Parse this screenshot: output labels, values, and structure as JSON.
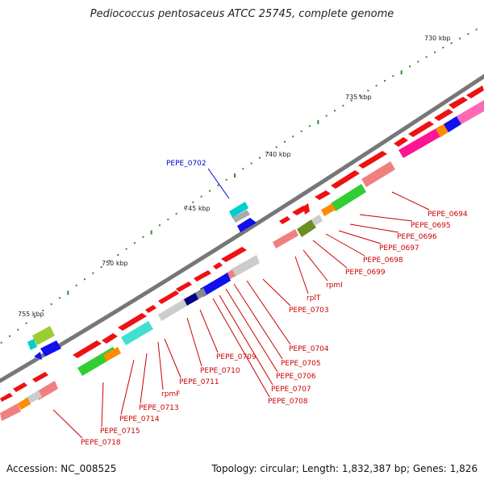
{
  "title": "Pediococcus pentosaceus ATCC 25745, complete genome",
  "footer": {
    "accession": "Accession: NC_008525",
    "summary": "Topology: circular; Length: 1,832,387 bp; Genes: 1,826"
  },
  "ticks": [
    "730 kbp",
    "735 kbp",
    "740 kbp",
    "745 kbp",
    "750 kbp",
    "755 kbp"
  ],
  "highlight_label": "PEPE_0702",
  "gene_labels": [
    "PEPE_0694",
    "PEPE_0695",
    "PEPE_0696",
    "PEPE_0697",
    "PEPE_0698",
    "PEPE_0699",
    "rpmI",
    "rplT",
    "PEPE_0703",
    "PEPE_0704",
    "PEPE_0705",
    "PEPE_0706",
    "PEPE_0707",
    "PEPE_0708",
    "PEPE_0709",
    "PEPE_0710",
    "PEPE_0711",
    "rpmF",
    "PEPE_0713",
    "PEPE_0714",
    "PEPE_0715",
    "PEPE_0718"
  ],
  "colors": {
    "backbone": "#777777",
    "gene": "#ee1111",
    "label": "#cc0000",
    "highlight": "#0000cc",
    "tick": "#2e8b2e"
  }
}
